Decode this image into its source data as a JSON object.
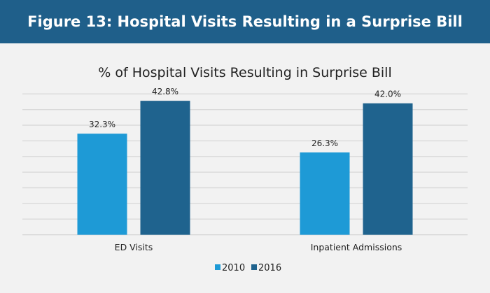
{
  "header": {
    "title": "Figure 13: Hospital Visits Resulting in a Surprise Bill"
  },
  "chart_data": {
    "type": "bar",
    "title": "% of Hospital Visits Resulting in Surprise Bill",
    "categories": [
      "ED Visits",
      "Inpatient Admissions"
    ],
    "series": [
      {
        "name": "2010",
        "values": [
          32.3,
          26.3
        ],
        "labels": [
          "32.3%",
          "26.3%"
        ],
        "color": "#1e9ad6"
      },
      {
        "name": "2016",
        "values": [
          42.8,
          42.0
        ],
        "labels": [
          "42.8%",
          "42.0%"
        ],
        "color": "#1f638e"
      }
    ],
    "xlabel": "",
    "ylabel": "",
    "ylim": [
      0,
      45
    ],
    "grid_step": 5,
    "grid": true,
    "y_tick_labels_shown": false,
    "legend": "bottom-center"
  }
}
